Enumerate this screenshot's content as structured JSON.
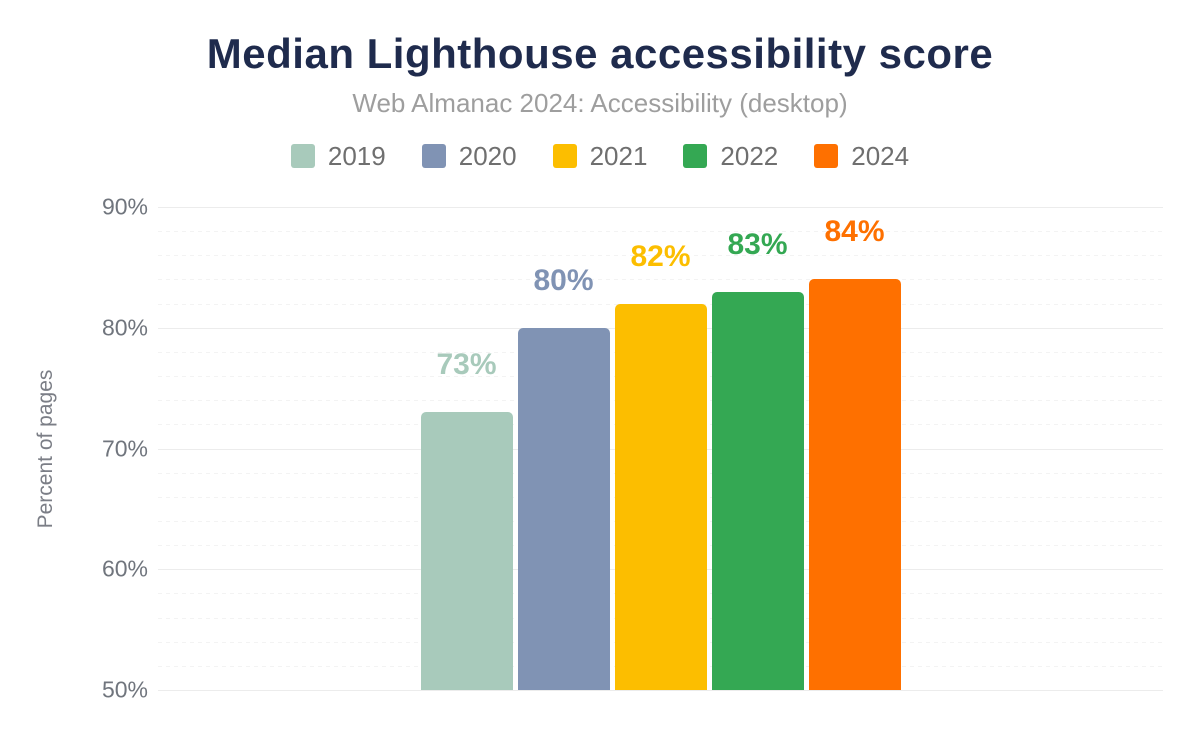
{
  "chart_data": {
    "type": "bar",
    "title": "Median Lighthouse accessibility score",
    "subtitle": "Web Almanac 2024: Accessibility (desktop)",
    "ylabel": "Percent of pages",
    "xlabel": "",
    "ylim": [
      50,
      90
    ],
    "y_major_step": 10,
    "y_minor_step": 2,
    "y_tick_labels": [
      "50%",
      "60%",
      "70%",
      "80%",
      "90%"
    ],
    "grid": true,
    "legend_position": "top",
    "categories": [
      "2019",
      "2020",
      "2021",
      "2022",
      "2024"
    ],
    "series": [
      {
        "name": "2019",
        "value": 73,
        "data_label": "73%",
        "color": "#a8cabb"
      },
      {
        "name": "2020",
        "value": 80,
        "data_label": "80%",
        "color": "#8093b4"
      },
      {
        "name": "2021",
        "value": 82,
        "data_label": "82%",
        "color": "#fcbe00"
      },
      {
        "name": "2022",
        "value": 83,
        "data_label": "83%",
        "color": "#34a853"
      },
      {
        "name": "2024",
        "value": 84,
        "data_label": "84%",
        "color": "#fe7000"
      }
    ]
  },
  "colors": {
    "title": "#1f2b4d",
    "subtitle": "#9e9e9e",
    "legend_text": "#6f6f6f",
    "tick_text": "#70757d",
    "axis_title_text": "#7b7e86",
    "grid_major": "#ececec",
    "grid_minor": "#f3f3f3",
    "background": "#ffffff"
  }
}
